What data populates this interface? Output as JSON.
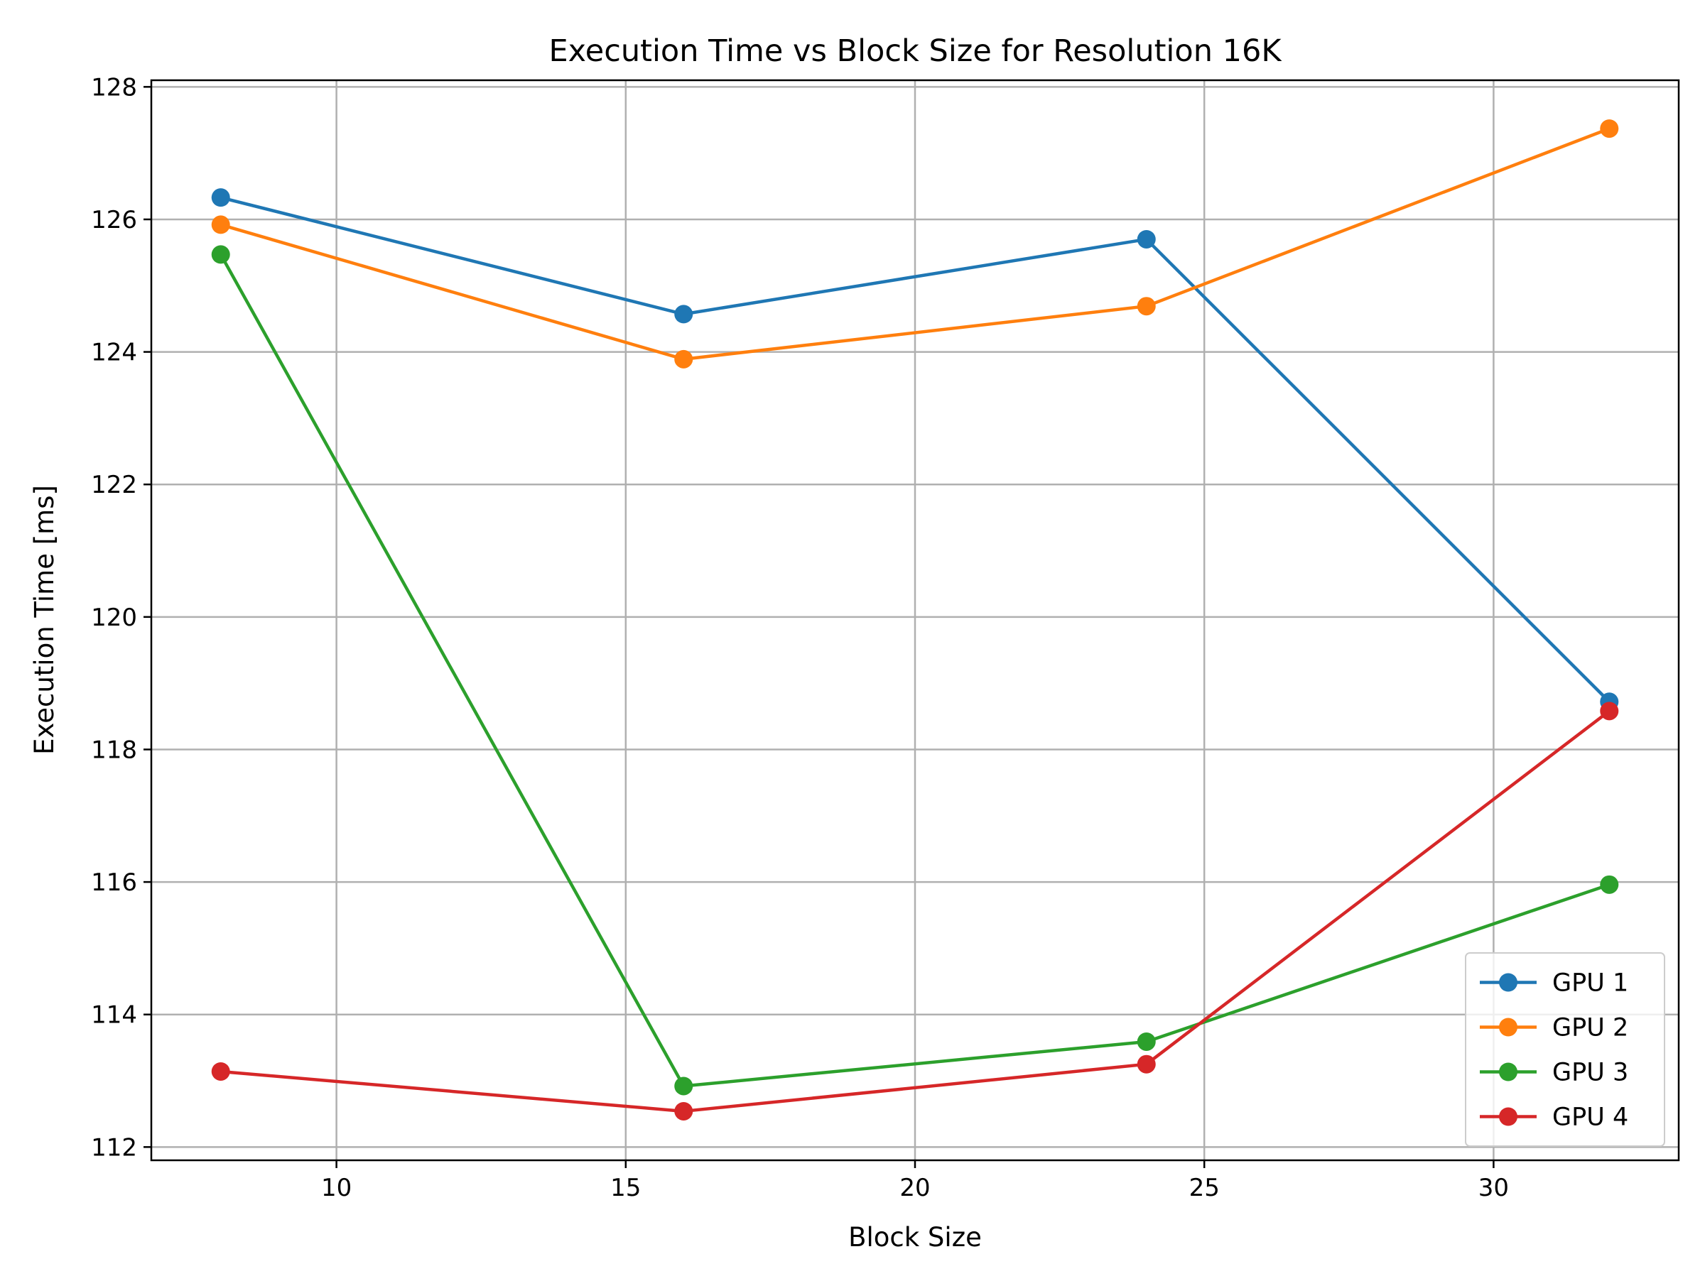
{
  "chart_data": {
    "type": "line",
    "title": "Execution Time vs Block Size for Resolution 16K",
    "xlabel": "Block Size",
    "ylabel": "Execution Time [ms]",
    "xlim": [
      6.8,
      33.2
    ],
    "ylim": [
      111.8,
      128.1
    ],
    "xticks": [
      10,
      15,
      20,
      25,
      30
    ],
    "yticks": [
      112,
      114,
      116,
      118,
      120,
      122,
      124,
      126,
      128
    ],
    "grid": true,
    "legend_position": "lower-right",
    "x": [
      8,
      16,
      24,
      32
    ],
    "series": [
      {
        "name": "GPU 1",
        "color": "#1f77b4",
        "values": [
          126.33,
          124.57,
          125.7,
          118.72
        ]
      },
      {
        "name": "GPU 2",
        "color": "#ff7f0e",
        "values": [
          125.92,
          123.89,
          124.69,
          127.37
        ]
      },
      {
        "name": "GPU 3",
        "color": "#2ca02c",
        "values": [
          125.47,
          112.92,
          113.59,
          115.96
        ]
      },
      {
        "name": "GPU 4",
        "color": "#d62728",
        "values": [
          113.14,
          112.54,
          113.25,
          118.58
        ]
      }
    ]
  }
}
